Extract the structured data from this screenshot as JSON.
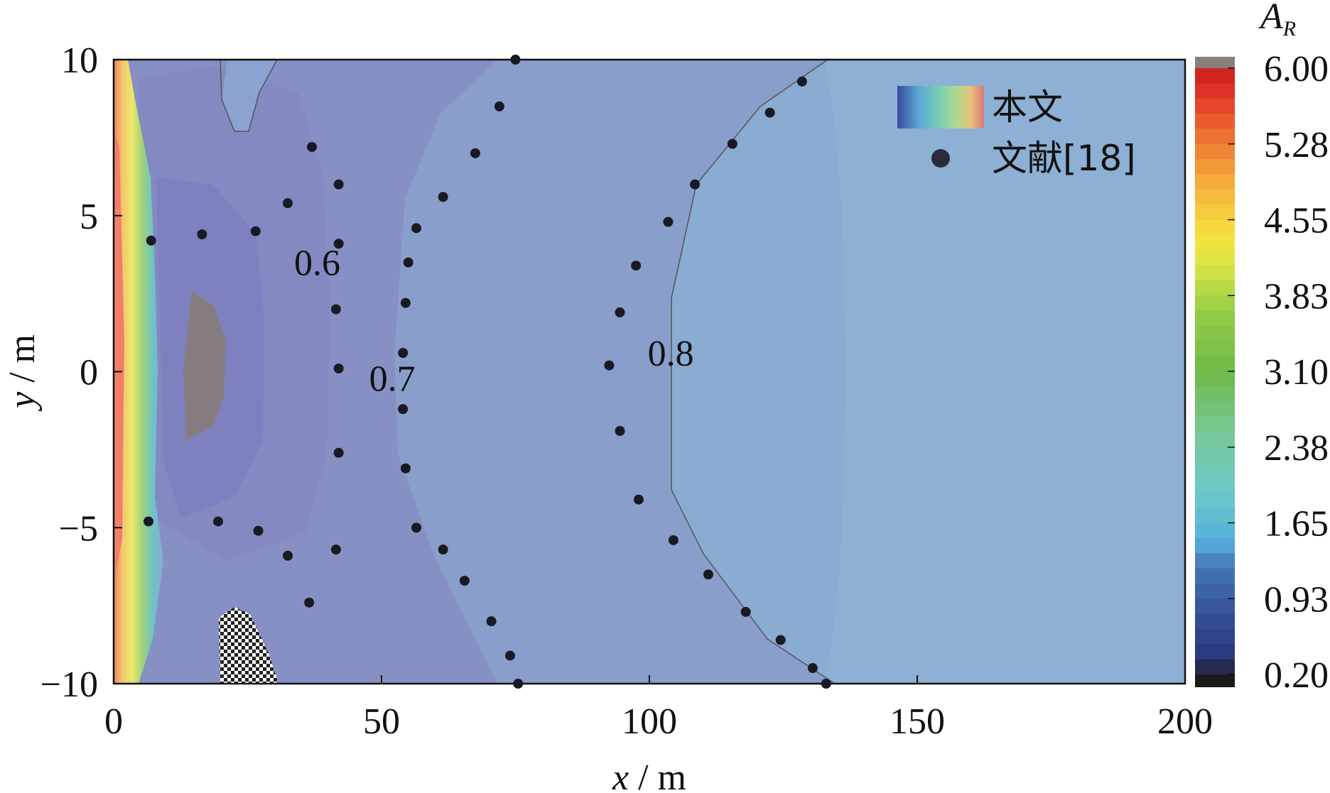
{
  "chart_data": {
    "type": "contour",
    "xlabel": "x / m",
    "ylabel": "y / m",
    "xlim": [
      0,
      200
    ],
    "ylim": [
      -10,
      10
    ],
    "x_ticks": [
      "0",
      "50",
      "100",
      "150",
      "200"
    ],
    "y_ticks": [
      "10",
      "5",
      "0",
      "−5",
      "−10"
    ],
    "colorbar": {
      "title": "A",
      "title_sub": "R",
      "ticks": [
        "6.00",
        "5.28",
        "4.55",
        "3.83",
        "3.10",
        "2.38",
        "1.65",
        "0.93",
        "0.20"
      ],
      "range": [
        0.2,
        6.0
      ]
    },
    "contour_labels": [
      {
        "text": "0.6",
        "x": 38,
        "y": 3.5
      },
      {
        "text": "0.7",
        "x": 52,
        "y": -0.2
      },
      {
        "text": "0.8",
        "x": 104,
        "y": 0.6
      }
    ],
    "legend": {
      "placement": "top-right",
      "items": [
        {
          "label": "本文",
          "kind": "color-bar"
        },
        {
          "label": "文献[18]",
          "kind": "dot"
        }
      ]
    },
    "series": [
      {
        "name": "文献[18]",
        "kind": "scatter",
        "points": [
          [
            7,
            4.2
          ],
          [
            6.5,
            -4.8
          ],
          [
            16.5,
            4.4
          ],
          [
            26.5,
            4.5
          ],
          [
            32.5,
            5.4
          ],
          [
            37,
            7.2
          ],
          [
            42,
            6
          ],
          [
            42,
            4.1
          ],
          [
            41.5,
            2
          ],
          [
            42,
            0.1
          ],
          [
            42,
            -2.6
          ],
          [
            41.5,
            -5.7
          ],
          [
            36.5,
            -7.4
          ],
          [
            32.5,
            -5.9
          ],
          [
            27,
            -5.1
          ],
          [
            19.5,
            -4.8
          ],
          [
            75,
            10
          ],
          [
            72,
            8.5
          ],
          [
            67.5,
            7
          ],
          [
            61.5,
            5.6
          ],
          [
            56.5,
            4.6
          ],
          [
            55,
            3.5
          ],
          [
            54.5,
            2.2
          ],
          [
            54,
            0.6
          ],
          [
            54,
            -1.2
          ],
          [
            54.5,
            -3.1
          ],
          [
            56.5,
            -5
          ],
          [
            61.5,
            -5.7
          ],
          [
            65.5,
            -6.7
          ],
          [
            70.5,
            -8
          ],
          [
            74,
            -9.1
          ],
          [
            75.5,
            -10
          ],
          [
            128.5,
            9.3
          ],
          [
            122.5,
            8.3
          ],
          [
            115.5,
            7.3
          ],
          [
            108.5,
            6
          ],
          [
            103.5,
            4.8
          ],
          [
            97.5,
            3.4
          ],
          [
            94.5,
            1.9
          ],
          [
            92.5,
            0.2
          ],
          [
            94.5,
            -1.9
          ],
          [
            98,
            -4.1
          ],
          [
            104.5,
            -5.4
          ],
          [
            111,
            -6.5
          ],
          [
            118,
            -7.7
          ],
          [
            124.5,
            -8.6
          ],
          [
            130.5,
            -9.5
          ],
          [
            133,
            -10
          ]
        ]
      }
    ]
  }
}
